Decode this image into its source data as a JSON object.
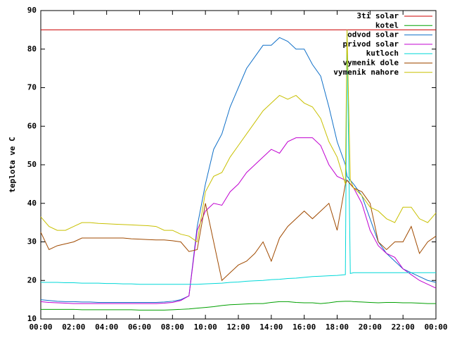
{
  "chart_data": {
    "type": "line",
    "ylabel": "teplota ve C",
    "x": [
      0,
      0.5,
      1,
      1.5,
      2,
      2.5,
      3,
      3.5,
      4,
      4.5,
      5,
      5.5,
      6,
      6.5,
      7,
      7.5,
      8,
      8.5,
      9,
      9.5,
      10,
      10.5,
      11,
      11.5,
      12,
      12.5,
      13,
      13.5,
      14,
      14.5,
      15,
      15.5,
      16,
      16.5,
      17,
      17.5,
      18,
      18.5,
      18.6,
      18.8,
      19,
      19.5,
      20,
      20.5,
      21,
      21.5,
      22,
      22.5,
      23,
      23.5,
      24
    ],
    "xlim": [
      0,
      24
    ],
    "xticks": [
      {
        "value": 0,
        "label": "00:00"
      },
      {
        "value": 2,
        "label": "02:00"
      },
      {
        "value": 4,
        "label": "04:00"
      },
      {
        "value": 6,
        "label": "06:00"
      },
      {
        "value": 8,
        "label": "08:00"
      },
      {
        "value": 10,
        "label": "10:00"
      },
      {
        "value": 12,
        "label": "12:00"
      },
      {
        "value": 14,
        "label": "14:00"
      },
      {
        "value": 16,
        "label": "16:00"
      },
      {
        "value": 18,
        "label": "18:00"
      },
      {
        "value": 20,
        "label": "20:00"
      },
      {
        "value": 22,
        "label": "22:00"
      },
      {
        "value": 24,
        "label": "00:00"
      }
    ],
    "ylim": [
      10,
      90
    ],
    "yticks": [
      10,
      20,
      30,
      40,
      50,
      60,
      70,
      80,
      90
    ],
    "legend": "top-right",
    "series": [
      {
        "name": "3ti solar",
        "color": "#cc0000",
        "values": [
          85,
          85,
          85,
          85,
          85,
          85,
          85,
          85,
          85,
          85,
          85,
          85,
          85,
          85,
          85,
          85,
          85,
          85,
          85,
          85,
          85,
          85,
          85,
          85,
          85,
          85,
          85,
          85,
          85,
          85,
          85,
          85,
          85,
          85,
          85,
          85,
          85,
          85,
          85,
          85,
          85,
          85,
          85,
          85,
          85,
          85,
          85,
          85,
          85,
          85,
          85
        ]
      },
      {
        "name": "kotel",
        "color": "#00a000",
        "values": [
          12.5,
          12.5,
          12.5,
          12.5,
          12.5,
          12.4,
          12.4,
          12.4,
          12.4,
          12.4,
          12.4,
          12.4,
          12.3,
          12.3,
          12.3,
          12.3,
          12.4,
          12.5,
          12.6,
          12.8,
          13,
          13.2,
          13.5,
          13.7,
          13.8,
          13.9,
          14,
          14,
          14.3,
          14.5,
          14.5,
          14.3,
          14.2,
          14.2,
          14,
          14.2,
          14.5,
          14.6,
          14.6,
          14.6,
          14.5,
          14.4,
          14.3,
          14.2,
          14.3,
          14.3,
          14.2,
          14.2,
          14.1,
          14,
          14
        ]
      },
      {
        "name": "odvod solar",
        "color": "#1070c8",
        "values": [
          15,
          14.8,
          14.6,
          14.5,
          14.5,
          14.4,
          14.4,
          14.3,
          14.3,
          14.3,
          14.3,
          14.3,
          14.3,
          14.3,
          14.3,
          14.4,
          14.6,
          15,
          16,
          34,
          45,
          54,
          58,
          65,
          70,
          75,
          78,
          81,
          81,
          83,
          82,
          80,
          80,
          76,
          73,
          65,
          56,
          50,
          47,
          46,
          45,
          42,
          36,
          30,
          27,
          25,
          23,
          22,
          21,
          20,
          19.5
        ]
      },
      {
        "name": "privod solar",
        "color": "#c000d0",
        "values": [
          14.5,
          14.3,
          14.2,
          14.1,
          14,
          14,
          14,
          14,
          14,
          14,
          14,
          14,
          14,
          14,
          14,
          14.1,
          14.3,
          14.8,
          16,
          33,
          38,
          40,
          39.5,
          43,
          45,
          48,
          50,
          52,
          54,
          53,
          56,
          57,
          57,
          57,
          55,
          50,
          47,
          46,
          46,
          45,
          44,
          40,
          33,
          29,
          27,
          26,
          23,
          21.5,
          20,
          19,
          18
        ]
      },
      {
        "name": "kutloch",
        "color": "#00d8d8",
        "values": [
          19.5,
          19.5,
          19.5,
          19.4,
          19.4,
          19.3,
          19.3,
          19.3,
          19.2,
          19.2,
          19.1,
          19.1,
          19,
          19,
          19,
          19,
          19,
          19,
          19,
          19,
          19.1,
          19.2,
          19.3,
          19.5,
          19.6,
          19.8,
          19.9,
          20,
          20.2,
          20.3,
          20.5,
          20.6,
          20.8,
          21,
          21.1,
          21.2,
          21.3,
          21.5,
          85,
          21.8,
          22,
          22,
          22,
          22,
          22,
          22,
          22,
          22,
          22,
          22,
          22
        ]
      },
      {
        "name": "vymenik dole",
        "color": "#a04a00",
        "values": [
          32.5,
          28,
          29,
          29.5,
          30,
          31,
          31,
          31,
          31,
          31,
          31,
          30.8,
          30.7,
          30.6,
          30.5,
          30.5,
          30.3,
          30,
          27.5,
          28,
          40,
          30,
          20,
          22,
          24,
          25,
          27,
          30,
          25,
          31,
          34,
          36,
          38,
          36,
          38,
          40,
          33,
          45,
          46,
          45,
          44,
          43,
          40,
          30,
          28,
          30,
          30,
          34,
          27,
          30,
          31.5
        ]
      },
      {
        "name": "vymenik nahore",
        "color": "#c8c000",
        "values": [
          36.5,
          34,
          33,
          33,
          34,
          35,
          35,
          34.8,
          34.7,
          34.6,
          34.5,
          34.4,
          34.3,
          34.2,
          34,
          33,
          33,
          32,
          31.5,
          30,
          43,
          47,
          48,
          52,
          55,
          58,
          61,
          64,
          66,
          68,
          67,
          68,
          66,
          65,
          62,
          56,
          52,
          45,
          85,
          46,
          44,
          42,
          39,
          38,
          36,
          35,
          39,
          39,
          36,
          35,
          37.5
        ]
      }
    ]
  }
}
